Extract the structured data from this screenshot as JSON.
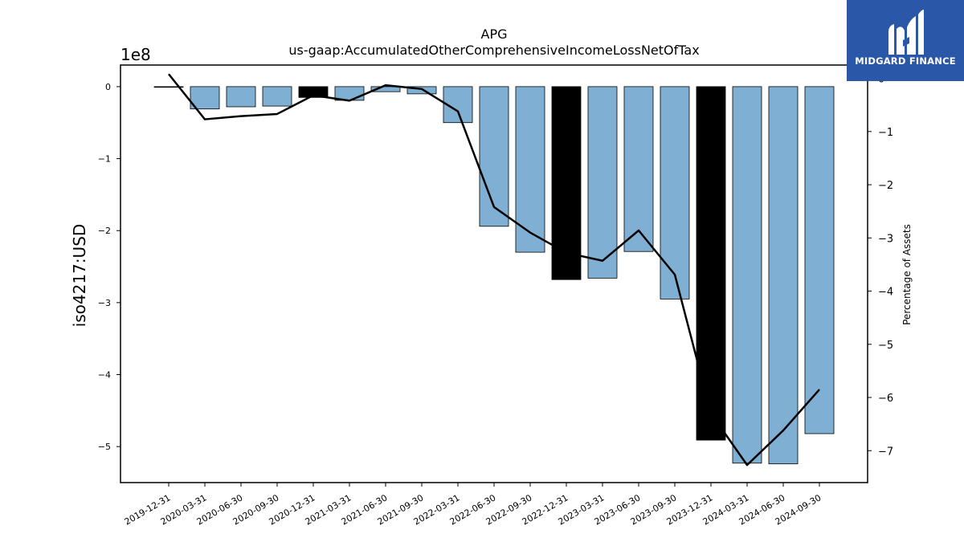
{
  "chart_data": {
    "type": "bar",
    "title": "APG",
    "subtitle": "us-gaap:AccumulatedOtherComprehensiveIncomeLossNetOfTax",
    "ylabel": "iso4217:USD",
    "y_offset_label": "1e8",
    "y2label": "Percentage of Assets",
    "ylim": [
      -5.5,
      0.3
    ],
    "y2lim": [
      -7.6,
      0.25
    ],
    "yticks": [
      {
        "value": 0,
        "label": "0"
      },
      {
        "value": -1,
        "label": "−1"
      },
      {
        "value": -2,
        "label": "−2"
      },
      {
        "value": -3,
        "label": "−3"
      },
      {
        "value": -4,
        "label": "−4"
      },
      {
        "value": -5,
        "label": "−5"
      }
    ],
    "y2ticks": [
      {
        "value": 0,
        "label": "0"
      },
      {
        "value": -1,
        "label": "−1"
      },
      {
        "value": -2,
        "label": "−2"
      },
      {
        "value": -3,
        "label": "−3"
      },
      {
        "value": -4,
        "label": "−4"
      },
      {
        "value": -5,
        "label": "−5"
      },
      {
        "value": -6,
        "label": "−6"
      },
      {
        "value": -7,
        "label": "−7"
      }
    ],
    "categories": [
      "2019-12-31",
      "2020-03-31",
      "2020-06-30",
      "2020-09-30",
      "2020-12-31",
      "2021-03-31",
      "2021-06-30",
      "2021-09-30",
      "2022-03-31",
      "2022-06-30",
      "2022-09-30",
      "2022-12-31",
      "2023-03-31",
      "2023-06-30",
      "2023-09-30",
      "2023-12-31",
      "2024-03-31",
      "2024-06-30",
      "2024-09-30"
    ],
    "series": [
      {
        "axis": "left",
        "kind": "bar",
        "values": [
          0.0,
          -0.31,
          -0.28,
          -0.27,
          -0.15,
          -0.19,
          -0.07,
          -0.1,
          -0.5,
          -1.94,
          -2.3,
          -2.68,
          -2.66,
          -2.29,
          -2.95,
          -4.91,
          -5.23,
          -5.24,
          -4.82
        ],
        "colors": [
          "#000000",
          "#7fb0d4",
          "#7fb0d4",
          "#7fb0d4",
          "#000000",
          "#7fb0d4",
          "#7fb0d4",
          "#7fb0d4",
          "#7fb0d4",
          "#7fb0d4",
          "#7fb0d4",
          "#000000",
          "#7fb0d4",
          "#7fb0d4",
          "#7fb0d4",
          "#000000",
          "#7fb0d4",
          "#7fb0d4",
          "#7fb0d4"
        ]
      },
      {
        "axis": "right",
        "kind": "line",
        "color": "#000000",
        "values": [
          0.08,
          -0.77,
          -0.71,
          -0.67,
          -0.32,
          -0.42,
          -0.13,
          -0.2,
          -0.62,
          -2.42,
          -2.9,
          -3.28,
          -3.43,
          -2.86,
          -3.69,
          -6.3,
          -7.27,
          -6.62,
          -5.85
        ]
      }
    ]
  },
  "logo": {
    "name": "MIDGARD FINANCE",
    "mark_icon": "midgard-m-icon",
    "background": "#2a57a8"
  }
}
